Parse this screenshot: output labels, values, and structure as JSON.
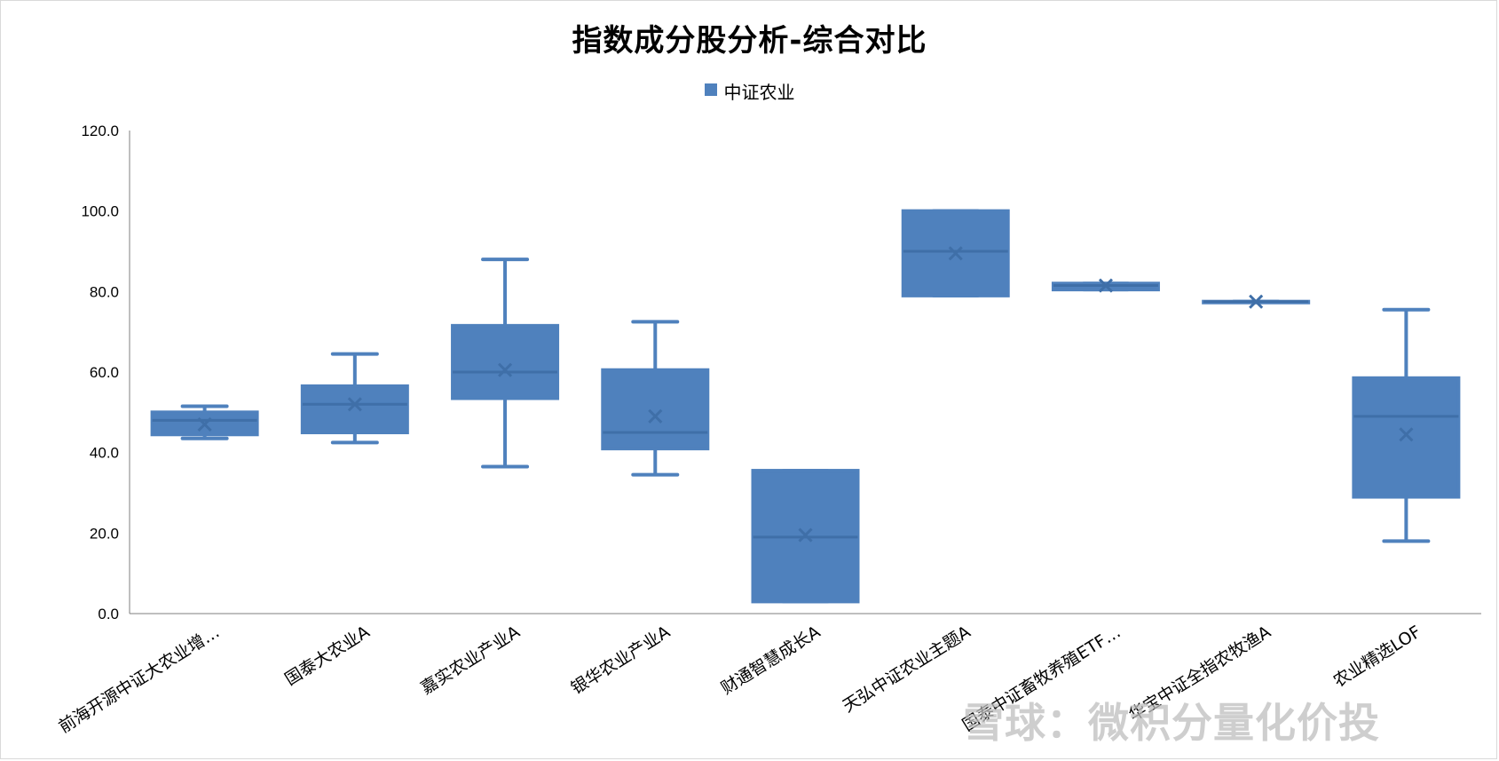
{
  "chart_data": {
    "type": "box",
    "title": "指数成分股分析-综合对比",
    "legend": {
      "position": "top",
      "entries": [
        "中证农业"
      ]
    },
    "series_color": "#4f81bd",
    "ylim": [
      0,
      120
    ],
    "y_ticks": [
      "0.0",
      "20.0",
      "40.0",
      "60.0",
      "80.0",
      "100.0",
      "120.0"
    ],
    "grid": false,
    "categories": [
      "前海开源中证大农业增…",
      "国泰大农业A",
      "嘉实农业产业A",
      "银华农业产业A",
      "财通智慧成长A",
      "天弘中证农业主题A",
      "国泰中证畜牧养殖ETF…",
      "华宝中证全指农牧渔A",
      "农业精选LOF"
    ],
    "boxes": [
      {
        "min": 43.5,
        "q1": 44.5,
        "median": 48.0,
        "q3": 50.0,
        "max": 51.5,
        "mean": 47.0
      },
      {
        "min": 42.5,
        "q1": 45.0,
        "median": 52.0,
        "q3": 56.5,
        "max": 64.5,
        "mean": 52.0
      },
      {
        "min": 36.5,
        "q1": 53.5,
        "median": 60.0,
        "q3": 71.5,
        "max": 88.0,
        "mean": 60.5
      },
      {
        "min": 34.5,
        "q1": 41.0,
        "median": 45.0,
        "q3": 60.5,
        "max": 72.5,
        "mean": 49.0
      },
      {
        "min": 3.0,
        "q1": 3.0,
        "median": 19.0,
        "q3": 35.5,
        "max": 35.5,
        "mean": 19.5
      },
      {
        "min": 79.0,
        "q1": 79.0,
        "median": 90.0,
        "q3": 100.0,
        "max": 100.0,
        "mean": 89.5
      },
      {
        "min": 80.5,
        "q1": 80.5,
        "median": 81.5,
        "q3": 82.0,
        "max": 82.0,
        "mean": 81.5
      },
      {
        "min": 77.5,
        "q1": 77.5,
        "median": 77.5,
        "q3": 77.5,
        "max": 77.5,
        "mean": 77.5
      },
      {
        "min": 18.0,
        "q1": 29.0,
        "median": 49.0,
        "q3": 58.5,
        "max": 75.5,
        "mean": 44.5
      }
    ]
  },
  "watermark": "雪球：微积分量化价投"
}
